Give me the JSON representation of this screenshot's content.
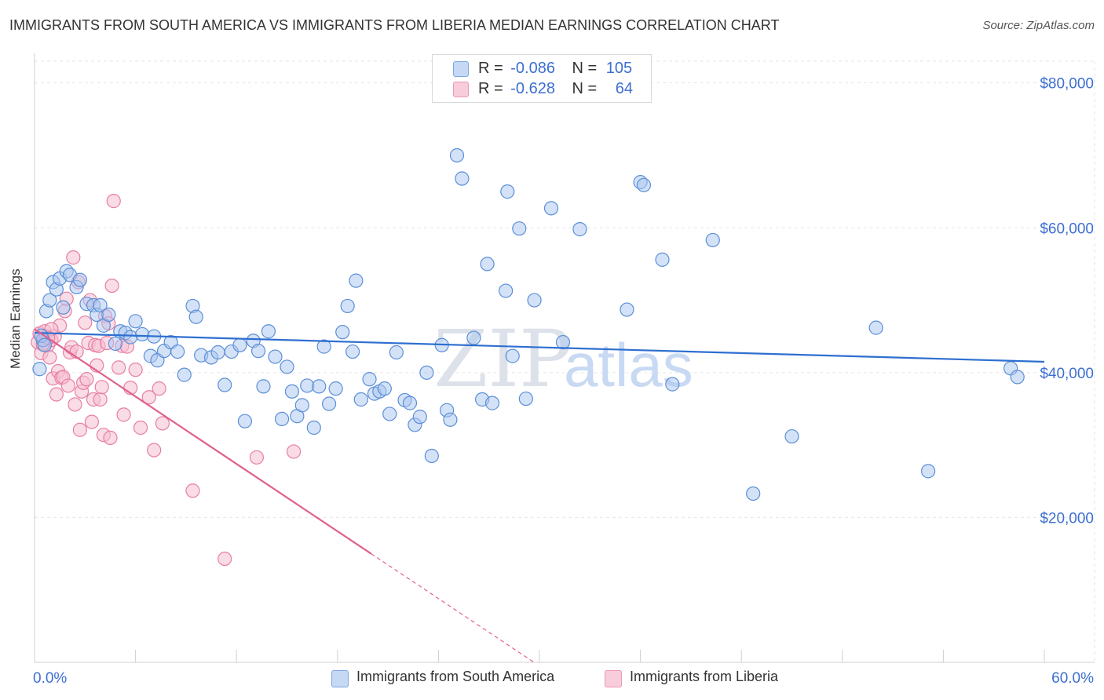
{
  "header": {
    "title": "IMMIGRANTS FROM SOUTH AMERICA VS IMMIGRANTS FROM LIBERIA MEDIAN EARNINGS CORRELATION CHART",
    "source": "Source: ZipAtlas.com"
  },
  "watermark": {
    "part1": "ZIP",
    "part2": "atlas"
  },
  "legend": {
    "rows": [
      {
        "r_label": "R =",
        "r_value": "-0.086",
        "n_label": "N =",
        "n_value": "105",
        "color": "#a9c5ef"
      },
      {
        "r_label": "R =",
        "r_value": "-0.628",
        "n_label": "N =",
        "n_value": "64",
        "color": "#f4b8cb"
      }
    ]
  },
  "bottom_legend": {
    "south_america": "Immigrants from South America",
    "liberia": "Immigrants from Liberia"
  },
  "colors": {
    "blue_fill": "#a9c5ef",
    "blue_stroke": "#5b8fd8",
    "blue_line": "#2e6fd0",
    "pink_fill": "#f6bfd2",
    "pink_stroke": "#e77fa3",
    "pink_line": "#e0608e",
    "axis_text": "#3d6fd1"
  },
  "chart_data": {
    "type": "scatter",
    "title": "IMMIGRANTS FROM SOUTH AMERICA VS IMMIGRANTS FROM LIBERIA MEDIAN EARNINGS CORRELATION CHART",
    "xlabel": "",
    "ylabel": "Median Earnings",
    "xlim": [
      0,
      60
    ],
    "ylim": [
      0,
      83000
    ],
    "x_tick_labels": [
      "0.0%",
      "60.0%"
    ],
    "y_ticks": [
      20000,
      40000,
      60000,
      80000
    ],
    "y_tick_labels": [
      "$20,000",
      "$40,000",
      "$60,000",
      "$80,000"
    ],
    "grid": true,
    "series": [
      {
        "name": "Immigrants from South America",
        "r": -0.086,
        "n": 105,
        "trend": {
          "x": [
            0,
            60
          ],
          "y": [
            45500,
            41500
          ]
        },
        "points": [
          [
            0.3,
            40500
          ],
          [
            0.5,
            44500
          ],
          [
            0.7,
            48500
          ],
          [
            0.9,
            50000
          ],
          [
            1.1,
            52500
          ],
          [
            1.3,
            51500
          ],
          [
            1.5,
            53000
          ],
          [
            1.7,
            49000
          ],
          [
            1.9,
            54000
          ],
          [
            2.1,
            53500
          ],
          [
            2.5,
            51800
          ],
          [
            2.7,
            52800
          ],
          [
            3.1,
            49500
          ],
          [
            3.5,
            49300
          ],
          [
            3.7,
            48000
          ],
          [
            3.9,
            49300
          ],
          [
            4.1,
            46500
          ],
          [
            4.4,
            48000
          ],
          [
            4.8,
            44000
          ],
          [
            5.1,
            45700
          ],
          [
            5.4,
            45500
          ],
          [
            5.7,
            44900
          ],
          [
            6.0,
            47100
          ],
          [
            6.4,
            45300
          ],
          [
            6.9,
            42300
          ],
          [
            7.1,
            45000
          ],
          [
            7.3,
            41700
          ],
          [
            7.7,
            43000
          ],
          [
            8.1,
            44200
          ],
          [
            8.5,
            42900
          ],
          [
            9.4,
            49200
          ],
          [
            9.6,
            47700
          ],
          [
            8.9,
            39700
          ],
          [
            9.9,
            42400
          ],
          [
            10.5,
            42100
          ],
          [
            10.9,
            42800
          ],
          [
            11.3,
            38300
          ],
          [
            11.7,
            42900
          ],
          [
            12.2,
            43800
          ],
          [
            12.5,
            33300
          ],
          [
            13.0,
            44400
          ],
          [
            13.3,
            43000
          ],
          [
            13.6,
            38100
          ],
          [
            13.9,
            45700
          ],
          [
            14.3,
            42200
          ],
          [
            14.7,
            33600
          ],
          [
            15.0,
            40800
          ],
          [
            15.3,
            37400
          ],
          [
            15.6,
            34000
          ],
          [
            15.9,
            35500
          ],
          [
            16.2,
            38200
          ],
          [
            16.6,
            32400
          ],
          [
            16.9,
            38100
          ],
          [
            17.2,
            43600
          ],
          [
            17.5,
            35700
          ],
          [
            17.9,
            37800
          ],
          [
            18.3,
            45600
          ],
          [
            18.6,
            49200
          ],
          [
            18.9,
            42900
          ],
          [
            19.1,
            52700
          ],
          [
            19.4,
            36300
          ],
          [
            19.9,
            39100
          ],
          [
            20.2,
            37100
          ],
          [
            20.5,
            37400
          ],
          [
            20.8,
            37800
          ],
          [
            21.1,
            34300
          ],
          [
            21.5,
            42800
          ],
          [
            22.0,
            36200
          ],
          [
            22.3,
            35800
          ],
          [
            22.6,
            32800
          ],
          [
            22.9,
            33900
          ],
          [
            23.3,
            40000
          ],
          [
            23.6,
            28500
          ],
          [
            24.2,
            43800
          ],
          [
            24.5,
            34800
          ],
          [
            24.7,
            33500
          ],
          [
            25.1,
            70000
          ],
          [
            25.4,
            66800
          ],
          [
            26.1,
            44800
          ],
          [
            26.6,
            36300
          ],
          [
            26.9,
            55000
          ],
          [
            27.2,
            35800
          ],
          [
            28.0,
            51300
          ],
          [
            28.1,
            65000
          ],
          [
            28.4,
            42300
          ],
          [
            28.8,
            59900
          ],
          [
            29.2,
            36400
          ],
          [
            29.7,
            50000
          ],
          [
            30.7,
            62700
          ],
          [
            31.4,
            44200
          ],
          [
            32.4,
            59800
          ],
          [
            35.2,
            48700
          ],
          [
            36.0,
            66300
          ],
          [
            36.2,
            65900
          ],
          [
            37.3,
            55600
          ],
          [
            37.9,
            38400
          ],
          [
            40.3,
            58300
          ],
          [
            42.7,
            23300
          ],
          [
            45.0,
            31200
          ],
          [
            50.0,
            46200
          ],
          [
            53.1,
            26400
          ],
          [
            58.0,
            40600
          ],
          [
            58.4,
            39400
          ],
          [
            0.4,
            45100
          ],
          [
            0.6,
            43800
          ]
        ]
      },
      {
        "name": "Immigrants from Liberia",
        "r": -0.628,
        "n": 64,
        "trend": {
          "x": [
            0,
            20
          ],
          "y": [
            46000,
            15000
          ]
        },
        "points": [
          [
            0.2,
            44200
          ],
          [
            0.3,
            45400
          ],
          [
            0.4,
            42700
          ],
          [
            0.5,
            44000
          ],
          [
            0.6,
            45700
          ],
          [
            0.7,
            45000
          ],
          [
            0.8,
            43800
          ],
          [
            0.9,
            42100
          ],
          [
            1.0,
            44500
          ],
          [
            1.1,
            39200
          ],
          [
            1.2,
            45000
          ],
          [
            1.3,
            37000
          ],
          [
            1.4,
            40200
          ],
          [
            1.5,
            46500
          ],
          [
            1.6,
            39300
          ],
          [
            1.7,
            39400
          ],
          [
            1.8,
            48500
          ],
          [
            1.9,
            50200
          ],
          [
            2.0,
            38200
          ],
          [
            2.1,
            42800
          ],
          [
            2.2,
            43500
          ],
          [
            2.3,
            55900
          ],
          [
            2.4,
            35600
          ],
          [
            2.5,
            42900
          ],
          [
            2.6,
            52500
          ],
          [
            2.7,
            32100
          ],
          [
            2.8,
            37400
          ],
          [
            2.9,
            38600
          ],
          [
            3.0,
            46900
          ],
          [
            3.1,
            39100
          ],
          [
            3.2,
            44100
          ],
          [
            3.3,
            50000
          ],
          [
            3.4,
            33200
          ],
          [
            3.5,
            36300
          ],
          [
            3.6,
            43800
          ],
          [
            3.7,
            41000
          ],
          [
            3.8,
            43700
          ],
          [
            3.9,
            36300
          ],
          [
            4.0,
            38000
          ],
          [
            4.1,
            31400
          ],
          [
            4.2,
            47800
          ],
          [
            4.3,
            44100
          ],
          [
            4.4,
            46800
          ],
          [
            4.5,
            31000
          ],
          [
            4.6,
            52000
          ],
          [
            4.7,
            63700
          ],
          [
            5.0,
            40700
          ],
          [
            5.2,
            43700
          ],
          [
            5.3,
            34200
          ],
          [
            5.5,
            43600
          ],
          [
            5.7,
            37900
          ],
          [
            6.0,
            40400
          ],
          [
            6.3,
            32400
          ],
          [
            6.8,
            36600
          ],
          [
            7.1,
            29300
          ],
          [
            7.4,
            37800
          ],
          [
            7.6,
            33000
          ],
          [
            9.4,
            23700
          ],
          [
            11.3,
            14300
          ],
          [
            13.2,
            28300
          ],
          [
            15.4,
            29100
          ],
          [
            0.5,
            43900
          ],
          [
            1.0,
            46000
          ],
          [
            0.8,
            44800
          ]
        ]
      }
    ]
  }
}
